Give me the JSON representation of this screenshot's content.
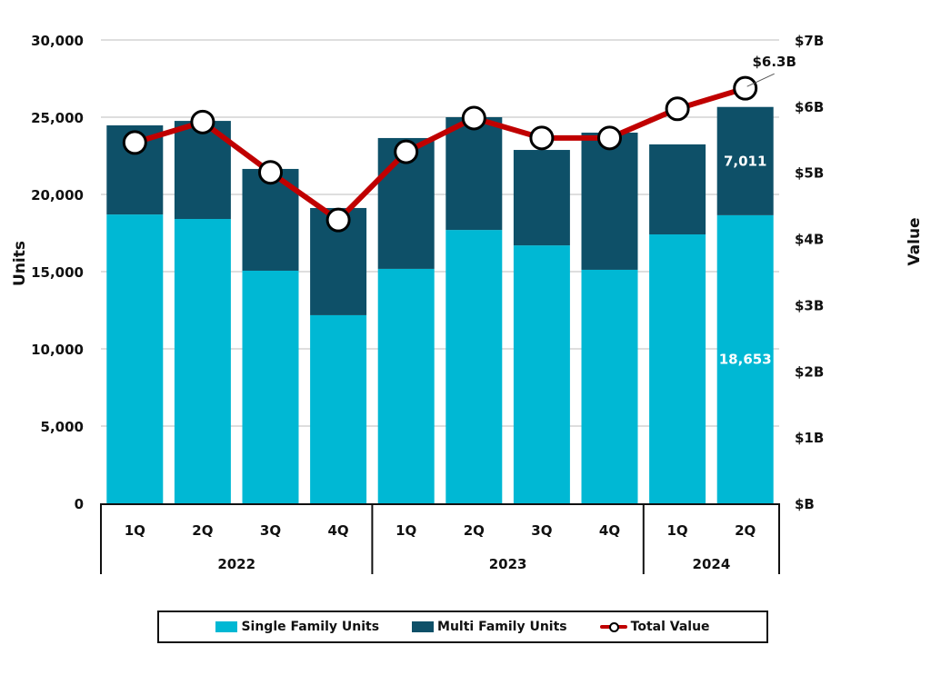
{
  "chart_data": {
    "type": "bar",
    "subtype": "stacked-bar-with-line-secondary-axis",
    "title": "",
    "categories": [
      "1Q",
      "2Q",
      "3Q",
      "4Q",
      "1Q",
      "2Q",
      "3Q",
      "4Q",
      "1Q",
      "2Q"
    ],
    "groups": [
      {
        "label": "2022",
        "count": 4
      },
      {
        "label": "2023",
        "count": 4
      },
      {
        "label": "2024",
        "count": 2
      }
    ],
    "series": [
      {
        "name": "Single Family Units",
        "type": "bar",
        "axis": "left",
        "color": "#00B8D4",
        "values": [
          18700,
          18410,
          15060,
          12180,
          15180,
          17700,
          16700,
          15120,
          17410,
          18653
        ]
      },
      {
        "name": "Multi Family Units",
        "type": "bar",
        "axis": "left",
        "color": "#0E5068",
        "values": [
          5770,
          6350,
          6590,
          6940,
          8470,
          7300,
          6180,
          8880,
          5830,
          7011
        ]
      },
      {
        "name": "Total Value",
        "type": "line",
        "axis": "right",
        "color": "#C00000",
        "unit": "B",
        "values": [
          5.45,
          5.76,
          5.0,
          4.28,
          5.31,
          5.82,
          5.52,
          5.52,
          5.96,
          6.27
        ]
      }
    ],
    "data_labels": [
      {
        "series": "Single Family Units",
        "index": 9,
        "text": "18,653"
      },
      {
        "series": "Multi Family Units",
        "index": 9,
        "text": "7,011"
      },
      {
        "series": "Total Value",
        "index": 9,
        "text": "$6.3B"
      }
    ],
    "ylabel": "Units",
    "ylim": [
      0,
      30000
    ],
    "yticks": [
      "0",
      "5,000",
      "10,000",
      "15,000",
      "20,000",
      "25,000",
      "30,000"
    ],
    "y2label": "Value",
    "y2lim": [
      0,
      7
    ],
    "y2ticks": [
      "$B",
      "$1B",
      "$2B",
      "$3B",
      "$4B",
      "$5B",
      "$6B",
      "$7B"
    ],
    "grid": true,
    "legend": {
      "position": "bottom",
      "items": [
        "Single Family Units",
        "Multi Family Units",
        "Total Value"
      ]
    }
  }
}
